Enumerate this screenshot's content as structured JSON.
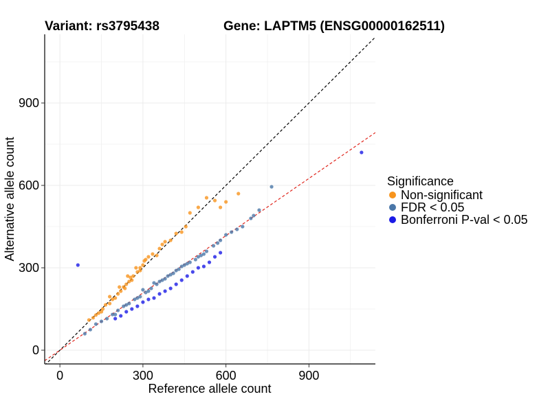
{
  "chart_data": {
    "type": "scatter",
    "title_left": "Variant: rs3795438",
    "title_right": "Gene: LAPTM5 (ENSG00000162511)",
    "xlabel": "Reference allele count",
    "ylabel": "Alternative allele count",
    "xlim": [
      -55,
      1140
    ],
    "ylim": [
      -50,
      1150
    ],
    "xticks": [
      0,
      300,
      600,
      900
    ],
    "yticks": [
      0,
      300,
      600,
      900
    ],
    "grid": true,
    "legend": {
      "title": "Significance",
      "placement": "right",
      "items": [
        {
          "label": "Non-significant",
          "color": "#F7941D"
        },
        {
          "label": "FDR < 0.05",
          "color": "#4A77A8"
        },
        {
          "label": "Bonferroni P-val < 0.05",
          "color": "#1A1AE6"
        }
      ]
    },
    "reference_lines": [
      {
        "name": "y = x",
        "slope": 1.0,
        "intercept": 0,
        "color": "#000000",
        "style": "dashed"
      },
      {
        "name": "fit",
        "slope": 0.695,
        "intercept": 0,
        "color": "#E0241B",
        "style": "dashed"
      }
    ],
    "series": [
      {
        "name": "Non-significant",
        "color": "#F7941D",
        "points": [
          [
            105,
            110
          ],
          [
            120,
            118
          ],
          [
            140,
            135
          ],
          [
            155,
            150
          ],
          [
            165,
            165
          ],
          [
            180,
            170
          ],
          [
            190,
            185
          ],
          [
            200,
            190
          ],
          [
            210,
            205
          ],
          [
            220,
            215
          ],
          [
            230,
            230
          ],
          [
            240,
            240
          ],
          [
            250,
            250
          ],
          [
            255,
            265
          ],
          [
            265,
            270
          ],
          [
            280,
            285
          ],
          [
            290,
            300
          ],
          [
            300,
            310
          ],
          [
            310,
            330
          ],
          [
            320,
            340
          ],
          [
            335,
            350
          ],
          [
            350,
            345
          ],
          [
            360,
            370
          ],
          [
            370,
            385
          ],
          [
            380,
            395
          ],
          [
            400,
            400
          ],
          [
            420,
            425
          ],
          [
            440,
            430
          ],
          [
            455,
            450
          ],
          [
            470,
            500
          ],
          [
            500,
            520
          ],
          [
            530,
            555
          ],
          [
            560,
            545
          ],
          [
            580,
            520
          ],
          [
            600,
            540
          ],
          [
            645,
            570
          ],
          [
            180,
            195
          ],
          [
            215,
            230
          ],
          [
            245,
            270
          ],
          [
            275,
            300
          ],
          [
            305,
            325
          ],
          [
            235,
            225
          ],
          [
            260,
            255
          ],
          [
            290,
            290
          ],
          [
            150,
            140
          ],
          [
            130,
            128
          ]
        ]
      },
      {
        "name": "FDR < 0.05",
        "color": "#4A77A8",
        "points": [
          [
            90,
            60
          ],
          [
            110,
            75
          ],
          [
            130,
            95
          ],
          [
            150,
            105
          ],
          [
            170,
            115
          ],
          [
            190,
            130
          ],
          [
            210,
            145
          ],
          [
            230,
            160
          ],
          [
            250,
            170
          ],
          [
            270,
            185
          ],
          [
            290,
            195
          ],
          [
            310,
            210
          ],
          [
            330,
            225
          ],
          [
            350,
            240
          ],
          [
            370,
            255
          ],
          [
            390,
            270
          ],
          [
            410,
            280
          ],
          [
            430,
            295
          ],
          [
            450,
            310
          ],
          [
            470,
            320
          ],
          [
            490,
            330
          ],
          [
            510,
            345
          ],
          [
            530,
            360
          ],
          [
            555,
            380
          ],
          [
            580,
            400
          ],
          [
            600,
            420
          ],
          [
            640,
            440
          ],
          [
            660,
            450
          ],
          [
            700,
            490
          ],
          [
            720,
            510
          ],
          [
            765,
            595
          ],
          [
            690,
            480
          ],
          [
            620,
            430
          ],
          [
            200,
            130
          ],
          [
            240,
            165
          ],
          [
            280,
            190
          ],
          [
            320,
            215
          ],
          [
            360,
            250
          ],
          [
            400,
            275
          ],
          [
            440,
            305
          ],
          [
            300,
            220
          ],
          [
            340,
            245
          ],
          [
            380,
            260
          ],
          [
            420,
            290
          ],
          [
            460,
            315
          ],
          [
            500,
            340
          ],
          [
            520,
            350
          ],
          [
            570,
            390
          ]
        ]
      },
      {
        "name": "Bonferroni P-val < 0.05",
        "color": "#1A1AE6",
        "points": [
          [
            65,
            310
          ],
          [
            1090,
            720
          ],
          [
            200,
            115
          ],
          [
            220,
            125
          ],
          [
            240,
            140
          ],
          [
            260,
            150
          ],
          [
            280,
            160
          ],
          [
            300,
            175
          ],
          [
            320,
            185
          ],
          [
            340,
            190
          ],
          [
            360,
            205
          ],
          [
            380,
            215
          ],
          [
            400,
            225
          ],
          [
            420,
            240
          ],
          [
            440,
            255
          ],
          [
            460,
            270
          ],
          [
            480,
            285
          ],
          [
            500,
            300
          ],
          [
            520,
            305
          ],
          [
            540,
            320
          ],
          [
            560,
            340
          ],
          [
            580,
            355
          ]
        ]
      }
    ]
  }
}
